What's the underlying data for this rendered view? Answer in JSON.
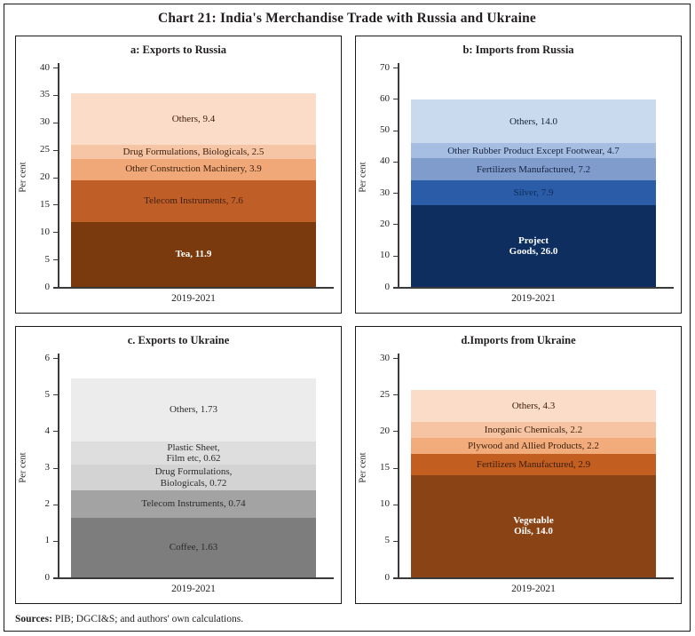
{
  "page": {
    "title": "Chart 21: India's Merchandise Trade with Russia and Ukraine",
    "sources_label": "Sources:",
    "sources_text": " PIB; DGCI&S; and authors' own calculations."
  },
  "chart_data": [
    {
      "type": "bar",
      "stacked": true,
      "title": "a: Exports to Russia",
      "categories": [
        "2019-2021"
      ],
      "xlabel": "2019-2021",
      "ylabel": "Per cent",
      "ylim": [
        0,
        40
      ],
      "ytick_step": 5,
      "grid": false,
      "segments_bottom_to_top": [
        {
          "name": "Tea",
          "value": 11.9,
          "label_lines": [
            "Tea, 11.9"
          ],
          "color": "#7b3a0e",
          "label_color": "#ffffff",
          "bold": true
        },
        {
          "name": "Telecom Instruments",
          "value": 7.6,
          "label_lines": [
            "Telecom Instruments, 7.6"
          ],
          "color": "#c05e28",
          "label_color": "#40210e",
          "bold": false
        },
        {
          "name": "Other Construction Machinery",
          "value": 3.9,
          "label_lines": [
            "Other Construction Machinery, 3.9"
          ],
          "color": "#f0a878",
          "label_color": "#40210e",
          "bold": false
        },
        {
          "name": "Drug Formulations, Biologicals",
          "value": 2.5,
          "label_lines": [
            "Drug Formulations, Biologicals, 2.5"
          ],
          "color": "#f6c5a5",
          "label_color": "#40210e",
          "bold": false
        },
        {
          "name": "Others",
          "value": 9.4,
          "label_lines": [
            "Others, 9.4"
          ],
          "color": "#fbdcc8",
          "label_color": "#40210e",
          "bold": false
        }
      ]
    },
    {
      "type": "bar",
      "stacked": true,
      "title": "b: Imports from Russia",
      "categories": [
        "2019-2021"
      ],
      "xlabel": "2019-2021",
      "ylabel": "Per cent",
      "ylim": [
        0,
        70
      ],
      "ytick_step": 10,
      "grid": false,
      "segments_bottom_to_top": [
        {
          "name": "Project Goods",
          "value": 26.0,
          "label_lines": [
            "Project",
            "Goods, 26.0"
          ],
          "color": "#0d2e5e",
          "label_color": "#ffffff",
          "bold": true
        },
        {
          "name": "Silver",
          "value": 7.9,
          "label_lines": [
            "Silver, 7.9"
          ],
          "color": "#2a5ca8",
          "label_color": "#0d2b57",
          "bold": false
        },
        {
          "name": "Fertilizers Manufactured",
          "value": 7.2,
          "label_lines": [
            "Fertilizers Manufactured, 7.2"
          ],
          "color": "#7f9ccd",
          "label_color": "#16233f",
          "bold": false
        },
        {
          "name": "Other Rubber Product Except Footwear",
          "value": 4.7,
          "label_lines": [
            "Other Rubber Product Except Footwear, 4.7"
          ],
          "color": "#a6bee2",
          "label_color": "#16233f",
          "bold": false
        },
        {
          "name": "Others",
          "value": 14.0,
          "label_lines": [
            "Others, 14.0"
          ],
          "color": "#c9daee",
          "label_color": "#16233f",
          "bold": false
        }
      ]
    },
    {
      "type": "bar",
      "stacked": true,
      "title": "c. Exports to Ukraine",
      "categories": [
        "2019-2021"
      ],
      "xlabel": "2019-2021",
      "ylabel": "Per cent",
      "ylim": [
        0,
        6
      ],
      "ytick_step": 1,
      "grid": false,
      "segments_bottom_to_top": [
        {
          "name": "Coffee",
          "value": 1.63,
          "label_lines": [
            "Coffee, 1.63"
          ],
          "color": "#7d7d7d",
          "label_color": "#2b2b2b",
          "bold": false
        },
        {
          "name": "Telecom Instruments",
          "value": 0.74,
          "label_lines": [
            "Telecom Instruments, 0.74"
          ],
          "color": "#a3a3a3",
          "label_color": "#2b2b2b",
          "bold": false
        },
        {
          "name": "Drug Formulations, Biologicals",
          "value": 0.72,
          "label_lines": [
            "Drug Formulations,",
            "Biologicals, 0.72"
          ],
          "color": "#d3d3d3",
          "label_color": "#2b2b2b",
          "bold": false
        },
        {
          "name": "Plastic Sheet, Film etc",
          "value": 0.62,
          "label_lines": [
            "Plastic Sheet,",
            "Film etc, 0.62"
          ],
          "color": "#dedede",
          "label_color": "#2b2b2b",
          "bold": false
        },
        {
          "name": "Others",
          "value": 1.73,
          "label_lines": [
            "Others, 1.73"
          ],
          "color": "#ececec",
          "label_color": "#2b2b2b",
          "bold": false
        }
      ]
    },
    {
      "type": "bar",
      "stacked": true,
      "title": "d.Imports from Ukraine",
      "categories": [
        "2019-2021"
      ],
      "xlabel": "2019-2021",
      "ylabel": "Per cent",
      "ylim": [
        0,
        30
      ],
      "ytick_step": 5,
      "grid": false,
      "segments_bottom_to_top": [
        {
          "name": "Vegetable Oils",
          "value": 14.0,
          "label_lines": [
            "Vegetable",
            "Oils, 14.0"
          ],
          "color": "#8a4314",
          "label_color": "#ffffff",
          "bold": true
        },
        {
          "name": "Fertilizers Manufactured",
          "value": 2.9,
          "label_lines": [
            "Fertilizers Manufactured, 2.9"
          ],
          "color": "#c25e20",
          "label_color": "#3a1e0c",
          "bold": false
        },
        {
          "name": "Plywood and Allied Products",
          "value": 2.2,
          "label_lines": [
            "Plywood and Allied Products, 2.2"
          ],
          "color": "#f2ac7c",
          "label_color": "#3a1e0c",
          "bold": false
        },
        {
          "name": "Inorganic Chemicals",
          "value": 2.2,
          "label_lines": [
            "Inorganic Chemicals, 2.2"
          ],
          "color": "#f6c4a2",
          "label_color": "#3a1e0c",
          "bold": false
        },
        {
          "name": "Others",
          "value": 4.3,
          "label_lines": [
            "Others, 4.3"
          ],
          "color": "#fbdcc8",
          "label_color": "#3a1e0c",
          "bold": false
        }
      ]
    }
  ]
}
